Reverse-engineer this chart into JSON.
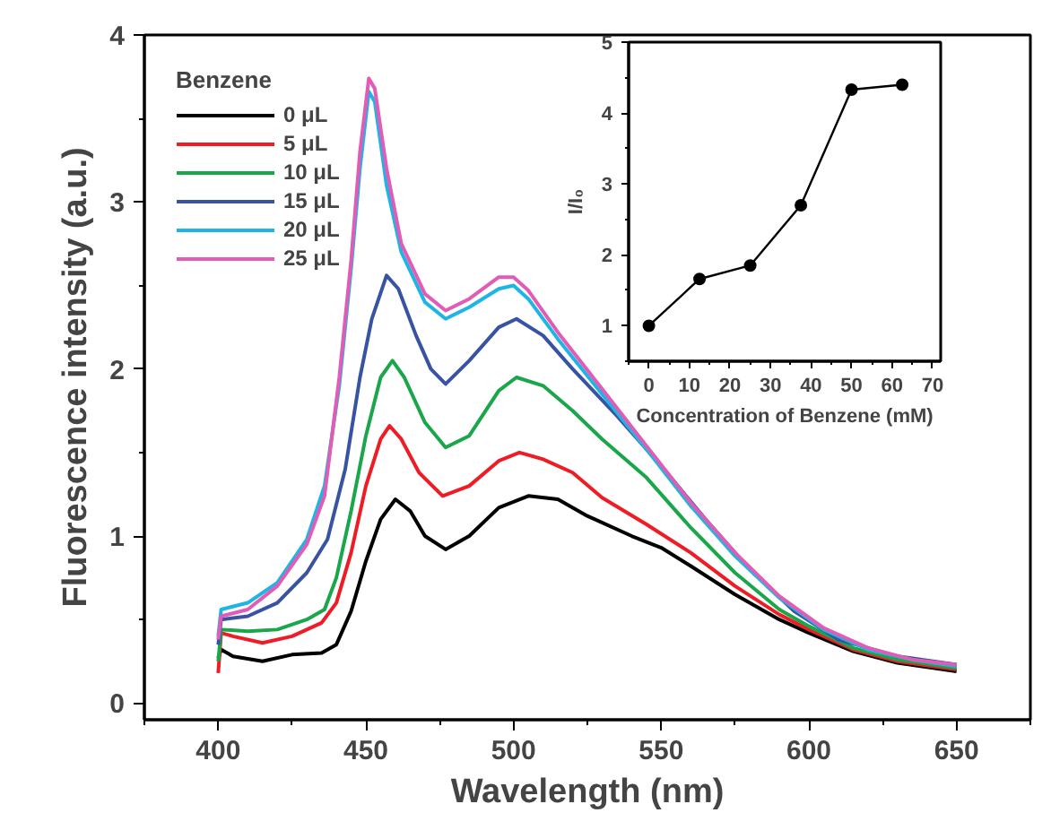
{
  "chart_data": [
    {
      "type": "line",
      "xlabel": "Wavelength (nm)",
      "ylabel": "Fluorescence intensity (a.u.)",
      "legend_title": "Benzene",
      "legend": "top left",
      "xlim": [
        375,
        675
      ],
      "ylim": [
        -0.1,
        4
      ],
      "xticks": [
        400,
        450,
        500,
        550,
        600,
        650
      ],
      "yticks": [
        0,
        1,
        2,
        3,
        4
      ],
      "grid": false,
      "marker": "none",
      "line_style": "solid",
      "series": [
        {
          "name": "0 μL",
          "color": "#000000",
          "x": [
            400,
            401,
            405,
            415,
            425,
            435,
            440,
            445,
            450,
            455,
            460,
            465,
            470,
            477,
            485,
            495,
            505,
            515,
            525,
            540,
            550,
            560,
            575,
            590,
            600,
            615,
            630,
            650
          ],
          "values": [
            0.27,
            0.32,
            0.28,
            0.25,
            0.29,
            0.3,
            0.35,
            0.55,
            0.85,
            1.1,
            1.22,
            1.15,
            1.0,
            0.92,
            1.0,
            1.17,
            1.24,
            1.22,
            1.12,
            1.0,
            0.93,
            0.82,
            0.65,
            0.5,
            0.42,
            0.31,
            0.24,
            0.19
          ]
        },
        {
          "name": "5 μL",
          "color": "#ee1c25",
          "x": [
            400,
            401,
            405,
            415,
            425,
            435,
            440,
            445,
            450,
            455,
            458,
            462,
            468,
            476,
            485,
            495,
            502,
            510,
            520,
            530,
            545,
            560,
            575,
            590,
            600,
            615,
            630,
            650
          ],
          "values": [
            0.18,
            0.42,
            0.4,
            0.36,
            0.4,
            0.48,
            0.6,
            0.9,
            1.3,
            1.58,
            1.66,
            1.58,
            1.38,
            1.24,
            1.3,
            1.45,
            1.5,
            1.46,
            1.38,
            1.23,
            1.07,
            0.9,
            0.7,
            0.53,
            0.44,
            0.32,
            0.25,
            0.2
          ]
        },
        {
          "name": "10 μL",
          "color": "#1aa64a",
          "x": [
            400,
            401,
            410,
            420,
            430,
            436,
            440,
            445,
            450,
            455,
            459,
            463,
            470,
            477,
            485,
            495,
            501,
            510,
            520,
            530,
            545,
            560,
            575,
            590,
            600,
            615,
            630,
            650
          ],
          "values": [
            0.25,
            0.44,
            0.43,
            0.44,
            0.5,
            0.56,
            0.75,
            1.15,
            1.6,
            1.95,
            2.05,
            1.95,
            1.68,
            1.53,
            1.6,
            1.87,
            1.95,
            1.9,
            1.75,
            1.58,
            1.35,
            1.05,
            0.78,
            0.56,
            0.46,
            0.33,
            0.26,
            0.21
          ]
        },
        {
          "name": "15 μL",
          "color": "#3953a4",
          "x": [
            400,
            401,
            410,
            420,
            430,
            437,
            443,
            448,
            452,
            457,
            461,
            467,
            472,
            477,
            485,
            495,
            501,
            510,
            520,
            535,
            550,
            565,
            580,
            595,
            610,
            630,
            650
          ],
          "values": [
            0.35,
            0.5,
            0.52,
            0.6,
            0.78,
            0.98,
            1.4,
            1.95,
            2.3,
            2.56,
            2.48,
            2.2,
            2.0,
            1.91,
            2.05,
            2.25,
            2.3,
            2.2,
            2.0,
            1.72,
            1.42,
            1.1,
            0.8,
            0.55,
            0.38,
            0.28,
            0.23
          ]
        },
        {
          "name": "20 μL",
          "color": "#1eb5e6",
          "x": [
            400,
            401,
            410,
            420,
            430,
            436,
            441,
            445,
            448,
            451,
            453,
            457,
            462,
            470,
            477,
            485,
            495,
            500,
            505,
            515,
            530,
            545,
            560,
            575,
            590,
            605,
            620,
            635,
            650
          ],
          "values": [
            0.4,
            0.56,
            0.6,
            0.72,
            0.98,
            1.3,
            1.9,
            2.6,
            3.2,
            3.66,
            3.6,
            3.1,
            2.7,
            2.4,
            2.3,
            2.37,
            2.48,
            2.5,
            2.42,
            2.18,
            1.85,
            1.52,
            1.18,
            0.88,
            0.63,
            0.44,
            0.32,
            0.26,
            0.22
          ]
        },
        {
          "name": "25 μL",
          "color": "#e05cb5",
          "x": [
            400,
            401,
            410,
            420,
            430,
            436,
            441,
            445,
            448,
            451,
            453,
            457,
            462,
            470,
            477,
            485,
            495,
            500,
            505,
            515,
            530,
            545,
            560,
            575,
            590,
            605,
            620,
            635,
            650
          ],
          "values": [
            0.38,
            0.52,
            0.56,
            0.7,
            0.95,
            1.24,
            1.95,
            2.65,
            3.3,
            3.74,
            3.68,
            3.2,
            2.75,
            2.45,
            2.35,
            2.42,
            2.55,
            2.55,
            2.47,
            2.22,
            1.88,
            1.54,
            1.2,
            0.9,
            0.64,
            0.45,
            0.33,
            0.26,
            0.23
          ]
        }
      ]
    },
    {
      "type": "line",
      "xlabel": "Concentration of Benzene (mM)",
      "ylabel": "I/I₀",
      "xlim": [
        -5,
        72
      ],
      "ylim": [
        0.5,
        5
      ],
      "xticks": [
        0,
        10,
        20,
        30,
        40,
        50,
        60,
        70
      ],
      "yticks": [
        1,
        2,
        3,
        4,
        5
      ],
      "grid": false,
      "marker": "circle",
      "line_style": "solid",
      "legend": false,
      "series": [
        {
          "color": "#000000",
          "x": [
            0,
            12.5,
            25,
            37.5,
            50,
            62.5
          ],
          "values": [
            1.0,
            1.66,
            1.85,
            2.7,
            4.33,
            4.4
          ]
        }
      ]
    }
  ]
}
